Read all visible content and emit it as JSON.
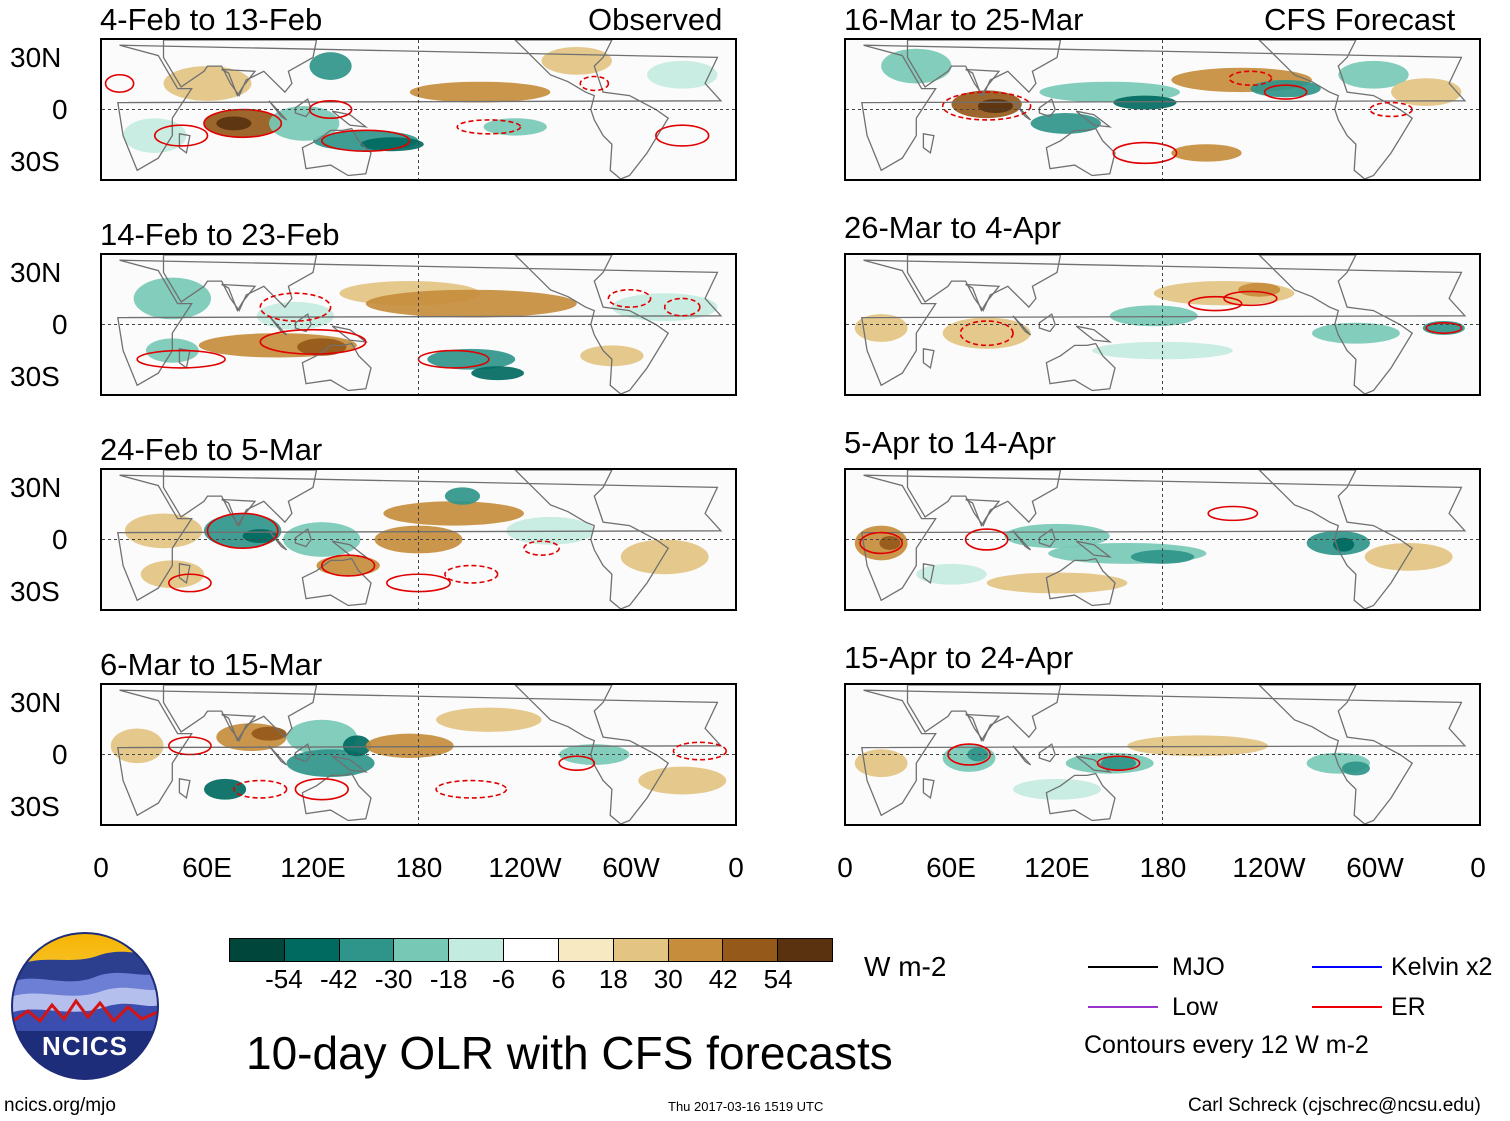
{
  "panels": [
    {
      "title": "4-Feb to 13-Feb",
      "tag": "Observed"
    },
    {
      "title": "14-Feb to 23-Feb",
      "tag": ""
    },
    {
      "title": "24-Feb to 5-Mar",
      "tag": ""
    },
    {
      "title": "6-Mar to 15-Mar",
      "tag": ""
    },
    {
      "title": "16-Mar to 25-Mar",
      "tag": "CFS Forecast"
    },
    {
      "title": "26-Mar to 4-Apr",
      "tag": ""
    },
    {
      "title": "5-Apr to 14-Apr",
      "tag": ""
    },
    {
      "title": "15-Apr to 24-Apr",
      "tag": ""
    }
  ],
  "axes": {
    "y_labels": [
      "30N",
      "0",
      "30S"
    ],
    "x_labels": [
      "0",
      "60E",
      "120E",
      "180",
      "120W",
      "60W",
      "0"
    ]
  },
  "colorbar": {
    "unit": "W m-2",
    "labels": [
      "-54",
      "-42",
      "-30",
      "-18",
      "-6",
      "6",
      "18",
      "30",
      "42",
      "54"
    ],
    "colors": [
      "#00463a",
      "#006a60",
      "#2f958a",
      "#77c9b6",
      "#c4ebdf",
      "#ffffff",
      "#f7e9c2",
      "#e3c482",
      "#c58d3c",
      "#95591a",
      "#5a3210"
    ]
  },
  "legend": {
    "items": [
      {
        "label": "MJO",
        "color": "#000000"
      },
      {
        "label": "Kelvin x2",
        "color": "#0000ff"
      },
      {
        "label": "Low",
        "color": "#9a32cd"
      },
      {
        "label": "ER",
        "color": "#ee0000"
      }
    ],
    "contours_note": "Contours every 12 W m-2"
  },
  "title": "10-day OLR with CFS forecasts",
  "logo_text": "NCICS",
  "footer": {
    "url": "ncics.org/mjo",
    "timestamp": "Thu 2017-03-16 1519 UTC",
    "credit": "Carl Schreck (cjschrec@ncsu.edu)"
  }
}
